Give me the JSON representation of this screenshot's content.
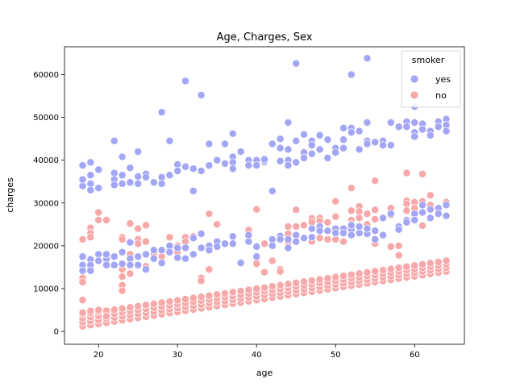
{
  "chart_data": {
    "type": "scatter",
    "title": "Age, Charges, Sex",
    "xlabel": "age",
    "ylabel": "charges",
    "xlim": [
      15.7,
      66.3
    ],
    "ylim": [
      -3000,
      66500
    ],
    "xticks": [
      20,
      30,
      40,
      50,
      60
    ],
    "yticks": [
      0,
      10000,
      20000,
      30000,
      40000,
      50000,
      60000
    ],
    "grid": false,
    "legend": {
      "title": "smoker",
      "placement": "top-right"
    },
    "series": [
      {
        "name": "yes",
        "color": "#a3a6f5",
        "points": [
          [
            18,
            34000
          ],
          [
            18,
            35500
          ],
          [
            18,
            38800
          ],
          [
            18,
            17500
          ],
          [
            18,
            15500
          ],
          [
            18,
            14200
          ],
          [
            19,
            36500
          ],
          [
            19,
            34500
          ],
          [
            19,
            33000
          ],
          [
            19,
            39500
          ],
          [
            19,
            16800
          ],
          [
            19,
            15500
          ],
          [
            19,
            14200
          ],
          [
            20,
            37800
          ],
          [
            20,
            33500
          ],
          [
            20,
            18000
          ],
          [
            20,
            16500
          ],
          [
            21,
            17000
          ],
          [
            21,
            15500
          ],
          [
            21,
            18000
          ],
          [
            22,
            44500
          ],
          [
            22,
            37000
          ],
          [
            22,
            35500
          ],
          [
            22,
            34200
          ],
          [
            22,
            17500
          ],
          [
            22,
            15500
          ],
          [
            23,
            40800
          ],
          [
            23,
            36500
          ],
          [
            23,
            34500
          ],
          [
            23,
            18500
          ],
          [
            23,
            15800
          ],
          [
            24,
            38200
          ],
          [
            24,
            34800
          ],
          [
            24,
            20800
          ],
          [
            24,
            17000
          ],
          [
            24,
            15500
          ],
          [
            25,
            42000
          ],
          [
            25,
            36200
          ],
          [
            25,
            34500
          ],
          [
            25,
            17500
          ],
          [
            25,
            15500
          ],
          [
            26,
            36800
          ],
          [
            26,
            36000
          ],
          [
            26,
            18000
          ],
          [
            26,
            14500
          ],
          [
            27,
            34800
          ],
          [
            27,
            19000
          ],
          [
            27,
            17000
          ],
          [
            28,
            51200
          ],
          [
            28,
            36000
          ],
          [
            28,
            34500
          ],
          [
            28,
            19000
          ],
          [
            28,
            16000
          ],
          [
            29,
            44500
          ],
          [
            29,
            36500
          ],
          [
            29,
            20000
          ],
          [
            29,
            18500
          ],
          [
            30,
            39000
          ],
          [
            30,
            37500
          ],
          [
            30,
            19500
          ],
          [
            30,
            17200
          ],
          [
            31,
            58500
          ],
          [
            31,
            38500
          ],
          [
            31,
            19500
          ],
          [
            31,
            17000
          ],
          [
            32,
            38000
          ],
          [
            32,
            32800
          ],
          [
            32,
            21800
          ],
          [
            32,
            18000
          ],
          [
            33,
            55200
          ],
          [
            33,
            37500
          ],
          [
            33,
            22800
          ],
          [
            33,
            19500
          ],
          [
            34,
            43800
          ],
          [
            34,
            38800
          ],
          [
            34,
            20000
          ],
          [
            34,
            19000
          ],
          [
            35,
            40000
          ],
          [
            35,
            21000
          ],
          [
            35,
            19800
          ],
          [
            36,
            43800
          ],
          [
            36,
            39200
          ],
          [
            36,
            20500
          ],
          [
            37,
            46200
          ],
          [
            37,
            40800
          ],
          [
            37,
            39500
          ],
          [
            37,
            38000
          ],
          [
            37,
            22200
          ],
          [
            37,
            20500
          ],
          [
            38,
            42000
          ],
          [
            38,
            16000
          ],
          [
            39,
            40000
          ],
          [
            39,
            38800
          ],
          [
            39,
            21000
          ],
          [
            39,
            22500
          ],
          [
            40,
            40000
          ],
          [
            40,
            38800
          ],
          [
            40,
            17500
          ],
          [
            40,
            19800
          ],
          [
            41,
            39500
          ],
          [
            41,
            39800
          ],
          [
            41,
            40200
          ],
          [
            42,
            43800
          ],
          [
            42,
            32800
          ],
          [
            42,
            21500
          ],
          [
            42,
            20000
          ],
          [
            43,
            42800
          ],
          [
            43,
            45000
          ],
          [
            43,
            39800
          ],
          [
            43,
            22300
          ],
          [
            43,
            21500
          ],
          [
            44,
            48800
          ],
          [
            44,
            42500
          ],
          [
            44,
            40000
          ],
          [
            44,
            38800
          ],
          [
            44,
            21500
          ],
          [
            44,
            19500
          ],
          [
            45,
            62600
          ],
          [
            45,
            44500
          ],
          [
            45,
            39500
          ],
          [
            45,
            22500
          ],
          [
            45,
            21000
          ],
          [
            46,
            46000
          ],
          [
            46,
            41800
          ],
          [
            46,
            40500
          ],
          [
            46,
            21800
          ],
          [
            47,
            44500
          ],
          [
            47,
            43500
          ],
          [
            47,
            41500
          ],
          [
            47,
            24000
          ],
          [
            47,
            22000
          ],
          [
            48,
            45800
          ],
          [
            48,
            42500
          ],
          [
            48,
            24500
          ],
          [
            48,
            23500
          ],
          [
            49,
            44800
          ],
          [
            49,
            40500
          ],
          [
            49,
            23500
          ],
          [
            50,
            42800
          ],
          [
            50,
            41800
          ],
          [
            50,
            24000
          ],
          [
            50,
            23000
          ],
          [
            51,
            47500
          ],
          [
            51,
            44800
          ],
          [
            51,
            42800
          ],
          [
            51,
            24000
          ],
          [
            51,
            23000
          ],
          [
            52,
            60000
          ],
          [
            52,
            47500
          ],
          [
            52,
            46500
          ],
          [
            52,
            23800
          ],
          [
            52,
            22500
          ],
          [
            52,
            24800
          ],
          [
            53,
            46800
          ],
          [
            53,
            42500
          ],
          [
            53,
            23000
          ],
          [
            53,
            24500
          ],
          [
            54,
            63800
          ],
          [
            54,
            48800
          ],
          [
            54,
            44500
          ],
          [
            54,
            43800
          ],
          [
            54,
            22800
          ],
          [
            54,
            24000
          ],
          [
            55,
            44200
          ],
          [
            55,
            21500
          ],
          [
            55,
            23500
          ],
          [
            56,
            44500
          ],
          [
            56,
            43500
          ],
          [
            56,
            26500
          ],
          [
            56,
            22500
          ],
          [
            57,
            48800
          ],
          [
            57,
            43500
          ],
          [
            57,
            27500
          ],
          [
            58,
            47800
          ],
          [
            58,
            24500
          ],
          [
            58,
            23800
          ],
          [
            59,
            49000
          ],
          [
            59,
            47800
          ],
          [
            59,
            26000
          ],
          [
            59,
            25500
          ],
          [
            60,
            52500
          ],
          [
            60,
            48800
          ],
          [
            60,
            46500
          ],
          [
            60,
            45500
          ],
          [
            60,
            27500
          ],
          [
            60,
            26000
          ],
          [
            61,
            48500
          ],
          [
            61,
            47200
          ],
          [
            61,
            29500
          ],
          [
            61,
            27800
          ],
          [
            62,
            46800
          ],
          [
            62,
            45800
          ],
          [
            62,
            28500
          ],
          [
            62,
            26500
          ],
          [
            63,
            49000
          ],
          [
            63,
            47800
          ],
          [
            63,
            28800
          ],
          [
            63,
            27500
          ],
          [
            64,
            49600
          ],
          [
            64,
            48200
          ],
          [
            64,
            46800
          ],
          [
            64,
            29500
          ],
          [
            64,
            27000
          ]
        ]
      },
      {
        "name": "no",
        "color": "#f7a8a9",
        "points": [
          [
            18,
            21500
          ],
          [
            18,
            7300
          ],
          [
            18,
            4400
          ],
          [
            18,
            12500
          ],
          [
            18,
            11500
          ],
          [
            19,
            24200
          ],
          [
            19,
            23000
          ],
          [
            19,
            22000
          ],
          [
            19,
            4800
          ],
          [
            20,
            27800
          ],
          [
            20,
            26000
          ],
          [
            20,
            5000
          ],
          [
            21,
            26000
          ],
          [
            21,
            16800
          ],
          [
            21,
            16000
          ],
          [
            21,
            3500
          ],
          [
            23,
            22000
          ],
          [
            23,
            21500
          ],
          [
            23,
            14500
          ],
          [
            23,
            12800
          ],
          [
            23,
            10800
          ],
          [
            23,
            9500
          ],
          [
            24,
            25200
          ],
          [
            24,
            18000
          ],
          [
            24,
            13500
          ],
          [
            25,
            24000
          ],
          [
            25,
            21500
          ],
          [
            25,
            20500
          ],
          [
            26,
            24800
          ],
          [
            26,
            21000
          ],
          [
            26,
            15200
          ],
          [
            27,
            18800
          ],
          [
            27,
            18200
          ],
          [
            28,
            17500
          ],
          [
            29,
            22000
          ],
          [
            29,
            19000
          ],
          [
            30,
            20000
          ],
          [
            30,
            18500
          ],
          [
            31,
            22000
          ],
          [
            31,
            21000
          ],
          [
            32,
            22200
          ],
          [
            33,
            12500
          ],
          [
            33,
            11800
          ],
          [
            34,
            27500
          ],
          [
            34,
            14500
          ],
          [
            35,
            25000
          ],
          [
            39,
            22800
          ],
          [
            39,
            23700
          ],
          [
            40,
            28500
          ],
          [
            40,
            16200
          ],
          [
            40,
            15800
          ],
          [
            41,
            20500
          ],
          [
            41,
            13800
          ],
          [
            42,
            16500
          ],
          [
            43,
            14500
          ],
          [
            43,
            14000
          ],
          [
            44,
            24500
          ],
          [
            44,
            22800
          ],
          [
            44,
            20800
          ],
          [
            45,
            24500
          ],
          [
            45,
            28400
          ],
          [
            46,
            24800
          ],
          [
            47,
            26400
          ],
          [
            47,
            25500
          ],
          [
            47,
            21000
          ],
          [
            48,
            26500
          ],
          [
            48,
            25800
          ],
          [
            48,
            21800
          ],
          [
            49,
            25500
          ],
          [
            49,
            21500
          ],
          [
            50,
            30400
          ],
          [
            50,
            26800
          ],
          [
            50,
            21500
          ],
          [
            51,
            21000
          ],
          [
            52,
            33500
          ],
          [
            52,
            28200
          ],
          [
            52,
            26000
          ],
          [
            52,
            25000
          ],
          [
            53,
            29200
          ],
          [
            53,
            28000
          ],
          [
            53,
            26500
          ],
          [
            54,
            27500
          ],
          [
            54,
            25000
          ],
          [
            55,
            35200
          ],
          [
            55,
            28400
          ],
          [
            55,
            26200
          ],
          [
            55,
            20500
          ],
          [
            57,
            28800
          ],
          [
            57,
            27200
          ],
          [
            57,
            19800
          ],
          [
            58,
            20000
          ],
          [
            58,
            17800
          ],
          [
            59,
            37000
          ],
          [
            59,
            30500
          ],
          [
            59,
            29800
          ],
          [
            59,
            28200
          ],
          [
            60,
            30200
          ],
          [
            60,
            28800
          ],
          [
            60,
            27200
          ],
          [
            61,
            36800
          ],
          [
            61,
            30400
          ],
          [
            61,
            24700
          ],
          [
            62,
            31800
          ],
          [
            62,
            29500
          ],
          [
            64,
            30200
          ]
        ],
        "bands": [
          {
            "x": [
              18,
              64
            ],
            "y_start": [
              1200,
              14000
            ],
            "y_end": [
              4000,
              16500
            ],
            "per_age": 4
          }
        ]
      }
    ]
  }
}
